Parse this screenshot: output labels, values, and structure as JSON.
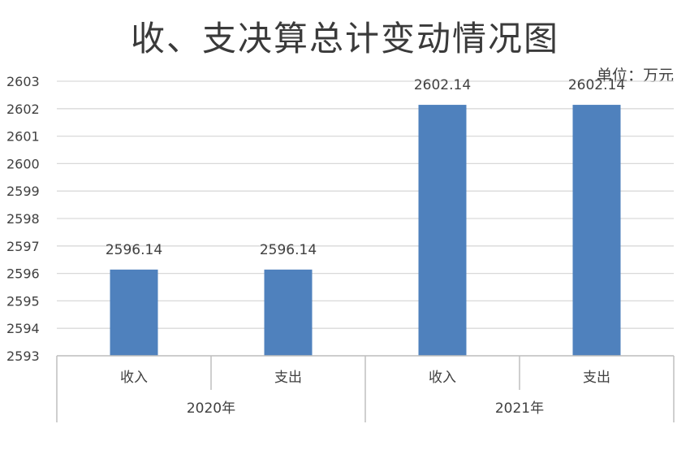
{
  "chart_data": {
    "type": "bar",
    "title": "收、支决算总计变动情况图",
    "unit": "单位：万元",
    "groups": [
      {
        "label": "2020年",
        "categories": [
          "收入",
          "支出"
        ],
        "values": [
          2596.14,
          2596.14
        ]
      },
      {
        "label": "2021年",
        "categories": [
          "收入",
          "支出"
        ],
        "values": [
          2602.14,
          2602.14
        ]
      }
    ],
    "data_labels": [
      "2596.14",
      "2596.14",
      "2602.14",
      "2602.14"
    ],
    "ylim": [
      2593,
      2603
    ],
    "yticks": [
      "2593",
      "2594",
      "2595",
      "2596",
      "2597",
      "2598",
      "2599",
      "2600",
      "2601",
      "2602",
      "2603"
    ],
    "grid": true,
    "legend": "none",
    "colors": {
      "bar": "#4f81bd",
      "grid": "#d9d9d9",
      "axis": "#bfbfbf",
      "text": "#404040"
    }
  }
}
